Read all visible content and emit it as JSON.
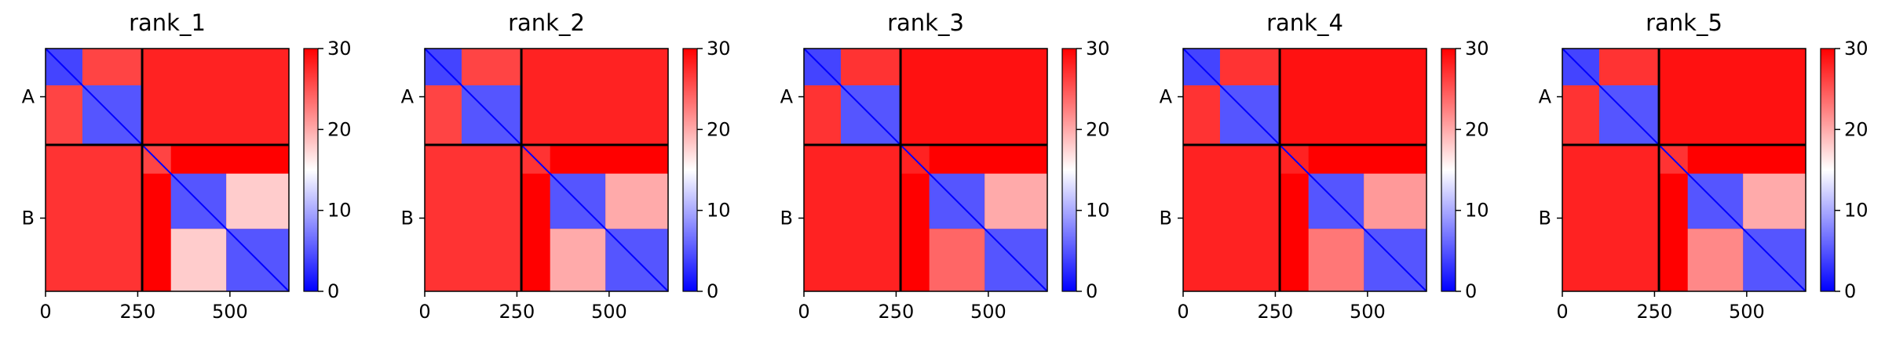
{
  "figure": {
    "type": "heatmap-grid",
    "colormap": "bwr"
  },
  "colors": {
    "low": "#0000ff",
    "mid": "#ffffff",
    "high": "#ff0000",
    "divider": "#000000"
  },
  "chart_data": [
    {
      "type": "heatmap",
      "title": "rank_1",
      "x_ticks": [
        0,
        250,
        500
      ],
      "x_tick_labels": [
        "0",
        "250",
        "500"
      ],
      "y_tick_labels": [
        "A",
        "B"
      ],
      "colorbar_ticks": [
        "0",
        "10",
        "20",
        "30"
      ],
      "vmin": 0,
      "vmax": 30,
      "xlim": [
        0,
        660
      ],
      "ylim": [
        660,
        0
      ],
      "chain_boundary": 262,
      "blocks": [
        {
          "x": [
            0,
            262
          ],
          "y": [
            0,
            262
          ],
          "value": 26
        },
        {
          "x": [
            0,
            100
          ],
          "y": [
            0,
            100
          ],
          "value": 4
        },
        {
          "x": [
            100,
            262
          ],
          "y": [
            100,
            262
          ],
          "value": 5
        },
        {
          "x": [
            262,
            660
          ],
          "y": [
            0,
            262
          ],
          "value": 28
        },
        {
          "x": [
            0,
            262
          ],
          "y": [
            262,
            660
          ],
          "value": 27
        },
        {
          "x": [
            262,
            340
          ],
          "y": [
            262,
            340
          ],
          "value": 26
        },
        {
          "x": [
            340,
            490
          ],
          "y": [
            340,
            490
          ],
          "value": 5
        },
        {
          "x": [
            490,
            660
          ],
          "y": [
            490,
            660
          ],
          "value": 5
        },
        {
          "x": [
            340,
            490
          ],
          "y": [
            490,
            660
          ],
          "value": 18
        },
        {
          "x": [
            490,
            660
          ],
          "y": [
            340,
            490
          ],
          "value": 18
        }
      ]
    },
    {
      "type": "heatmap",
      "title": "rank_2",
      "x_ticks": [
        0,
        250,
        500
      ],
      "x_tick_labels": [
        "0",
        "250",
        "500"
      ],
      "y_tick_labels": [
        "A",
        "B"
      ],
      "colorbar_ticks": [
        "0",
        "10",
        "20",
        "30"
      ],
      "vmin": 0,
      "vmax": 30,
      "xlim": [
        0,
        660
      ],
      "ylim": [
        660,
        0
      ],
      "chain_boundary": 262,
      "blocks": [
        {
          "x": [
            0,
            262
          ],
          "y": [
            0,
            262
          ],
          "value": 26
        },
        {
          "x": [
            0,
            100
          ],
          "y": [
            0,
            100
          ],
          "value": 4
        },
        {
          "x": [
            100,
            262
          ],
          "y": [
            100,
            262
          ],
          "value": 5
        },
        {
          "x": [
            262,
            660
          ],
          "y": [
            0,
            262
          ],
          "value": 28
        },
        {
          "x": [
            0,
            262
          ],
          "y": [
            262,
            660
          ],
          "value": 27
        },
        {
          "x": [
            262,
            340
          ],
          "y": [
            262,
            340
          ],
          "value": 27
        },
        {
          "x": [
            340,
            490
          ],
          "y": [
            340,
            490
          ],
          "value": 5
        },
        {
          "x": [
            490,
            660
          ],
          "y": [
            490,
            660
          ],
          "value": 5
        },
        {
          "x": [
            340,
            490
          ],
          "y": [
            490,
            660
          ],
          "value": 20
        },
        {
          "x": [
            490,
            660
          ],
          "y": [
            340,
            490
          ],
          "value": 20
        }
      ]
    },
    {
      "type": "heatmap",
      "title": "rank_3",
      "x_ticks": [
        0,
        250,
        500
      ],
      "x_tick_labels": [
        "0",
        "250",
        "500"
      ],
      "y_tick_labels": [
        "A",
        "B"
      ],
      "colorbar_ticks": [
        "0",
        "10",
        "20",
        "30"
      ],
      "vmin": 0,
      "vmax": 30,
      "xlim": [
        0,
        660
      ],
      "ylim": [
        660,
        0
      ],
      "chain_boundary": 262,
      "blocks": [
        {
          "x": [
            0,
            262
          ],
          "y": [
            0,
            262
          ],
          "value": 27
        },
        {
          "x": [
            0,
            100
          ],
          "y": [
            0,
            100
          ],
          "value": 4
        },
        {
          "x": [
            100,
            262
          ],
          "y": [
            100,
            262
          ],
          "value": 5
        },
        {
          "x": [
            262,
            660
          ],
          "y": [
            0,
            262
          ],
          "value": 29
        },
        {
          "x": [
            0,
            262
          ],
          "y": [
            262,
            660
          ],
          "value": 28
        },
        {
          "x": [
            262,
            340
          ],
          "y": [
            262,
            340
          ],
          "value": 28
        },
        {
          "x": [
            340,
            490
          ],
          "y": [
            340,
            490
          ],
          "value": 5
        },
        {
          "x": [
            490,
            660
          ],
          "y": [
            490,
            660
          ],
          "value": 5
        },
        {
          "x": [
            340,
            490
          ],
          "y": [
            490,
            660
          ],
          "value": 24
        },
        {
          "x": [
            490,
            660
          ],
          "y": [
            340,
            490
          ],
          "value": 20
        }
      ]
    },
    {
      "type": "heatmap",
      "title": "rank_4",
      "x_ticks": [
        0,
        250,
        500
      ],
      "x_tick_labels": [
        "0",
        "250",
        "500"
      ],
      "y_tick_labels": [
        "A",
        "B"
      ],
      "colorbar_ticks": [
        "0",
        "10",
        "20",
        "30"
      ],
      "vmin": 0,
      "vmax": 30,
      "xlim": [
        0,
        660
      ],
      "ylim": [
        660,
        0
      ],
      "chain_boundary": 262,
      "blocks": [
        {
          "x": [
            0,
            262
          ],
          "y": [
            0,
            262
          ],
          "value": 27
        },
        {
          "x": [
            0,
            100
          ],
          "y": [
            0,
            100
          ],
          "value": 4
        },
        {
          "x": [
            100,
            262
          ],
          "y": [
            100,
            262
          ],
          "value": 5
        },
        {
          "x": [
            262,
            660
          ],
          "y": [
            0,
            262
          ],
          "value": 29
        },
        {
          "x": [
            0,
            262
          ],
          "y": [
            262,
            660
          ],
          "value": 28
        },
        {
          "x": [
            262,
            340
          ],
          "y": [
            262,
            340
          ],
          "value": 28
        },
        {
          "x": [
            340,
            490
          ],
          "y": [
            340,
            490
          ],
          "value": 5
        },
        {
          "x": [
            490,
            660
          ],
          "y": [
            490,
            660
          ],
          "value": 5
        },
        {
          "x": [
            340,
            490
          ],
          "y": [
            490,
            660
          ],
          "value": 23
        },
        {
          "x": [
            490,
            660
          ],
          "y": [
            340,
            490
          ],
          "value": 21
        }
      ]
    },
    {
      "type": "heatmap",
      "title": "rank_5",
      "x_ticks": [
        0,
        250,
        500
      ],
      "x_tick_labels": [
        "0",
        "250",
        "500"
      ],
      "y_tick_labels": [
        "A",
        "B"
      ],
      "colorbar_ticks": [
        "0",
        "10",
        "20",
        "30"
      ],
      "vmin": 0,
      "vmax": 30,
      "xlim": [
        0,
        660
      ],
      "ylim": [
        660,
        0
      ],
      "chain_boundary": 262,
      "blocks": [
        {
          "x": [
            0,
            262
          ],
          "y": [
            0,
            262
          ],
          "value": 27
        },
        {
          "x": [
            0,
            100
          ],
          "y": [
            0,
            100
          ],
          "value": 4
        },
        {
          "x": [
            100,
            262
          ],
          "y": [
            100,
            262
          ],
          "value": 5
        },
        {
          "x": [
            262,
            660
          ],
          "y": [
            0,
            262
          ],
          "value": 29
        },
        {
          "x": [
            0,
            262
          ],
          "y": [
            262,
            660
          ],
          "value": 28
        },
        {
          "x": [
            262,
            340
          ],
          "y": [
            262,
            340
          ],
          "value": 27
        },
        {
          "x": [
            340,
            490
          ],
          "y": [
            340,
            490
          ],
          "value": 5
        },
        {
          "x": [
            490,
            660
          ],
          "y": [
            490,
            660
          ],
          "value": 5
        },
        {
          "x": [
            340,
            490
          ],
          "y": [
            490,
            660
          ],
          "value": 22
        },
        {
          "x": [
            490,
            660
          ],
          "y": [
            340,
            490
          ],
          "value": 20
        }
      ]
    }
  ]
}
